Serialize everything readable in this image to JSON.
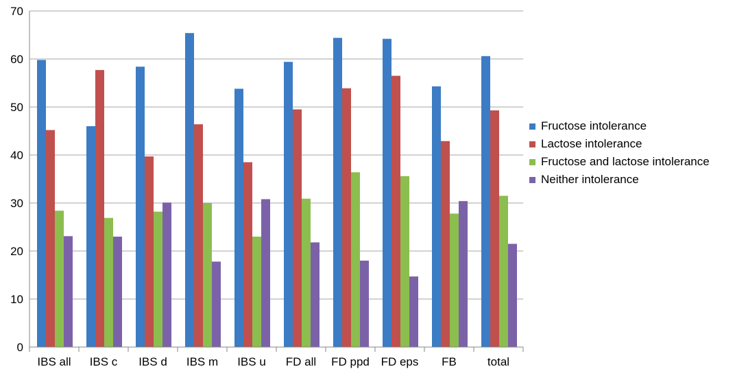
{
  "chart_data": {
    "type": "bar",
    "categories": [
      "IBS all",
      "IBS c",
      "IBS d",
      "IBS m",
      "IBS u",
      "FD all",
      "FD ppd",
      "FD eps",
      "FB",
      "total"
    ],
    "series": [
      {
        "name": "Fructose intolerance",
        "color": "#3b7cc4",
        "values": [
          59.8,
          46.0,
          58.4,
          65.4,
          53.8,
          59.4,
          64.4,
          64.2,
          54.3,
          60.6
        ]
      },
      {
        "name": "Lactose intolerance",
        "color": "#c0504d",
        "values": [
          45.2,
          57.7,
          39.7,
          46.4,
          38.5,
          49.5,
          53.9,
          56.5,
          42.9,
          49.3
        ]
      },
      {
        "name": "Fructose and lactose intolerance",
        "color": "#8cbd4f",
        "values": [
          28.4,
          26.9,
          28.2,
          30.0,
          23.0,
          30.9,
          36.4,
          35.6,
          27.8,
          31.5
        ]
      },
      {
        "name": "Neither intolerance",
        "color": "#7b62a8",
        "values": [
          23.1,
          23.0,
          30.1,
          17.8,
          30.8,
          21.8,
          18.0,
          14.7,
          30.4,
          21.5
        ]
      }
    ],
    "y_ticks": [
      "0",
      "10",
      "20",
      "30",
      "40",
      "50",
      "60",
      "70"
    ],
    "ylim": [
      0,
      70
    ],
    "grid": true,
    "legend_position": "right",
    "title": "",
    "xlabel": "",
    "ylabel": ""
  }
}
